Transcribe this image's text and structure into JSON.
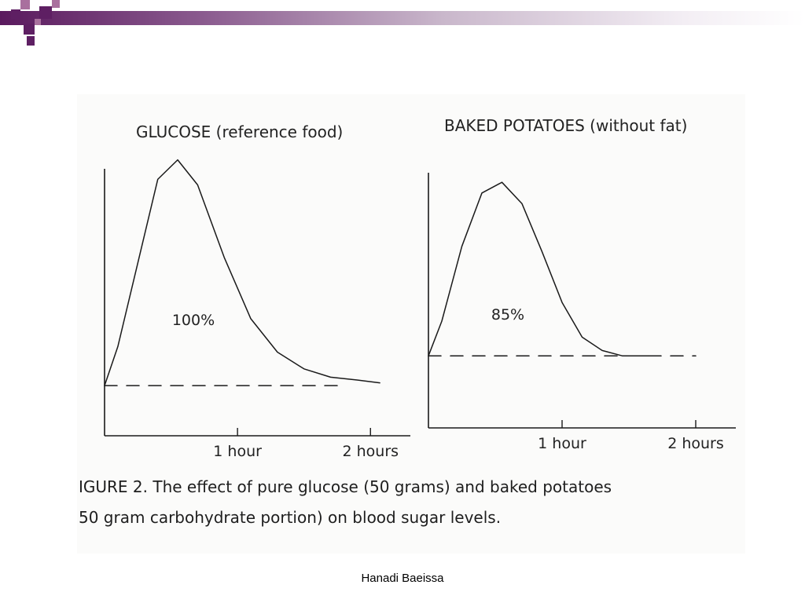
{
  "footer": {
    "author": "Hanadi Baeissa"
  },
  "caption": {
    "line1": "IGURE 2. The effect of pure glucose (50 grams) and baked potatoes",
    "line2": "50 gram carbohydrate portion) on blood sugar levels."
  },
  "accent_color": "#5e1f63",
  "chart_data": [
    {
      "type": "line",
      "title": "GLUCOSE (reference food)",
      "xlabel": "",
      "ylabel": "",
      "x_ticks": [
        "1 hour",
        "2 hours"
      ],
      "x_tick_values": [
        1,
        2
      ],
      "xlim": [
        0,
        2.3
      ],
      "ylim": [
        0,
        1
      ],
      "annotation": "100%",
      "baseline": 0.18,
      "series": [
        {
          "line_style": "solid",
          "x": [
            0,
            0.1,
            0.25,
            0.4,
            0.55,
            0.7,
            0.9,
            1.1,
            1.3,
            1.5,
            1.7,
            1.9,
            2.07
          ],
          "y": [
            0.18,
            0.32,
            0.62,
            0.92,
            0.99,
            0.9,
            0.64,
            0.42,
            0.3,
            0.24,
            0.21,
            0.2,
            0.19
          ]
        },
        {
          "line_style": "dashed",
          "x": [
            0,
            1.75
          ],
          "y": [
            0.18,
            0.18
          ]
        }
      ]
    },
    {
      "type": "line",
      "title": "BAKED POTATOES (without fat)",
      "xlabel": "",
      "ylabel": "",
      "x_ticks": [
        "1 hour",
        "2 hours"
      ],
      "x_tick_values": [
        1,
        2
      ],
      "xlim": [
        0,
        2.3
      ],
      "ylim": [
        0,
        1
      ],
      "annotation": "85%",
      "baseline": 0.27,
      "series": [
        {
          "line_style": "solid",
          "x": [
            0,
            0.1,
            0.25,
            0.4,
            0.55,
            0.7,
            0.85,
            1.0,
            1.15,
            1.3,
            1.45,
            1.65
          ],
          "y": [
            0.27,
            0.4,
            0.68,
            0.88,
            0.92,
            0.84,
            0.66,
            0.47,
            0.34,
            0.29,
            0.27,
            0.27
          ]
        },
        {
          "line_style": "dashed",
          "x": [
            0,
            2.0
          ],
          "y": [
            0.27,
            0.27
          ]
        }
      ]
    }
  ]
}
